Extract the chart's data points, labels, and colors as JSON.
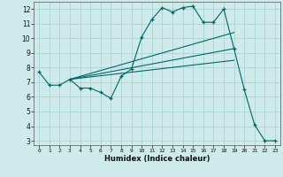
{
  "xlabel": "Humidex (Indice chaleur)",
  "bg_color": "#ceeaea",
  "line_color": "#006666",
  "grid_color": "#aad4d4",
  "xlim": [
    -0.5,
    23.5
  ],
  "ylim": [
    2.7,
    12.5
  ],
  "xticks": [
    0,
    1,
    2,
    3,
    4,
    5,
    6,
    7,
    8,
    9,
    10,
    11,
    12,
    13,
    14,
    15,
    16,
    17,
    18,
    19,
    20,
    21,
    22,
    23
  ],
  "yticks": [
    3,
    4,
    5,
    6,
    7,
    8,
    9,
    10,
    11,
    12
  ],
  "series1_x": [
    0,
    1,
    2,
    3,
    4,
    5,
    6,
    7,
    8,
    9,
    10,
    11,
    12,
    13,
    14,
    15,
    16,
    17,
    18,
    19,
    20,
    21,
    22,
    23
  ],
  "series1_y": [
    7.7,
    6.8,
    6.8,
    7.2,
    6.6,
    6.6,
    6.3,
    5.9,
    7.4,
    7.9,
    10.1,
    11.3,
    12.1,
    11.8,
    12.1,
    12.2,
    11.1,
    11.1,
    12.0,
    9.3,
    6.5,
    4.1,
    3.0,
    3.0
  ],
  "series2_x": [
    3,
    19
  ],
  "series2_y": [
    7.2,
    10.4
  ],
  "series3_x": [
    3,
    19
  ],
  "series3_y": [
    7.2,
    9.3
  ],
  "series4_x": [
    3,
    19
  ],
  "series4_y": [
    7.2,
    8.5
  ]
}
